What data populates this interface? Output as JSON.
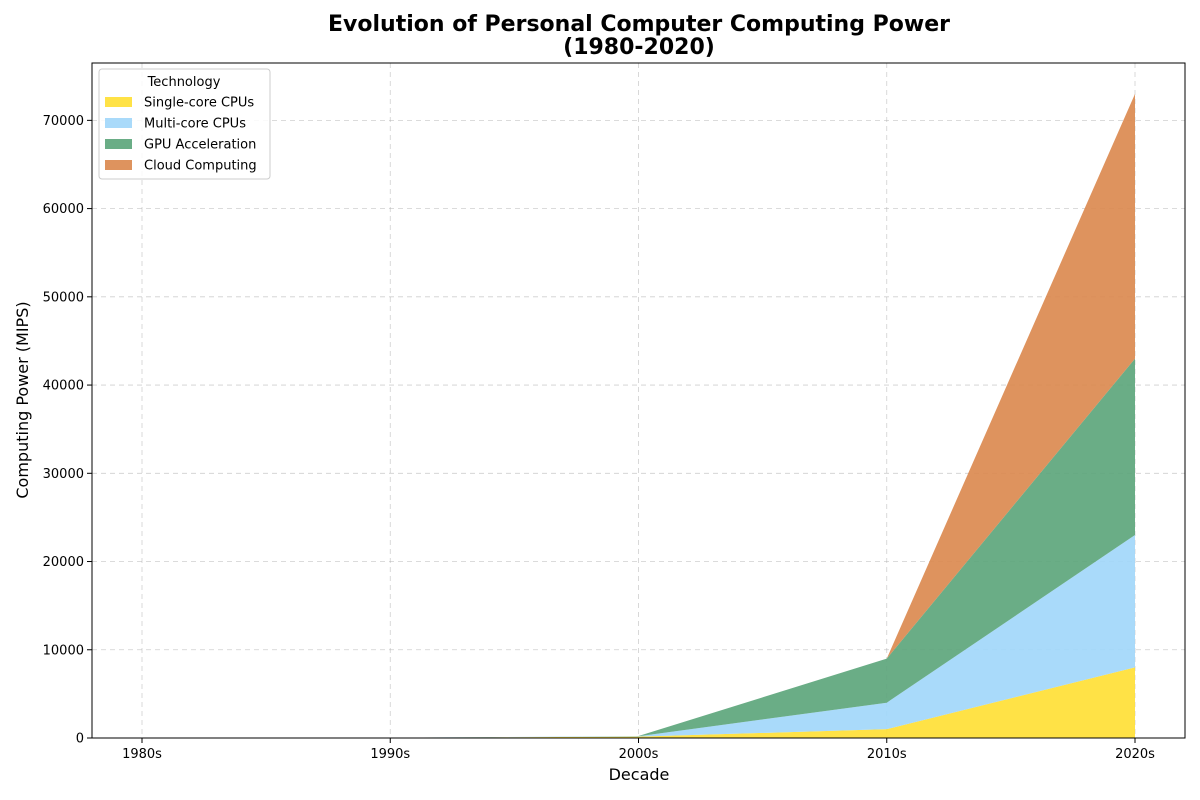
{
  "chart_data": {
    "type": "area",
    "stacked": true,
    "title_line1": "Evolution of Personal Computer Computing Power",
    "title_line2": "(1980-2020)",
    "xlabel": "Decade",
    "ylabel": "Computing Power (MIPS)",
    "categories": [
      "1980s",
      "1990s",
      "2000s",
      "2010s",
      "2020s"
    ],
    "ylim": [
      0,
      76500
    ],
    "yticks": [
      0,
      10000,
      20000,
      30000,
      40000,
      50000,
      60000,
      70000
    ],
    "ytick_labels": [
      "0",
      "10000",
      "20000",
      "30000",
      "40000",
      "50000",
      "60000",
      "70000"
    ],
    "grid": true,
    "legend": {
      "title": "Technology",
      "placement": "top-left"
    },
    "series": [
      {
        "name": "Single-core CPUs",
        "color": "#ffdf32",
        "values": [
          1,
          30,
          150,
          1000,
          8000
        ]
      },
      {
        "name": "Multi-core CPUs",
        "color": "#a0d6f9",
        "values": [
          0,
          0,
          50,
          3000,
          15000
        ]
      },
      {
        "name": "GPU Acceleration",
        "color": "#5aa479",
        "values": [
          0,
          0,
          20,
          5000,
          20000
        ]
      },
      {
        "name": "Cloud Computing",
        "color": "#da874c",
        "values": [
          0,
          0,
          0,
          0,
          30000
        ]
      }
    ]
  }
}
